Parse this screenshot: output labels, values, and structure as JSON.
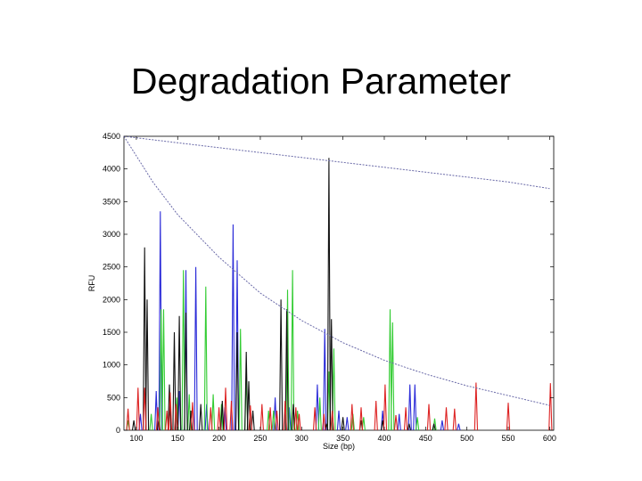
{
  "slide": {
    "title": "Degradation Parameter"
  },
  "chart_data": {
    "type": "line",
    "title": "",
    "xlabel": "Size (bp)",
    "ylabel": "RFU",
    "xlim": [
      85,
      605
    ],
    "ylim": [
      0,
      4500
    ],
    "grid": false,
    "x_ticks": [
      100,
      150,
      200,
      250,
      300,
      350,
      400,
      450,
      500,
      550,
      600
    ],
    "y_ticks": [
      0,
      500,
      1000,
      1500,
      2000,
      2500,
      3000,
      3500,
      4000,
      4500
    ],
    "colors": {
      "blue": "#2b2bd8",
      "green": "#33cc33",
      "black": "#111111",
      "red": "#dd2222",
      "curve": "#6a6aa8"
    },
    "curves": [
      {
        "x": [
          85,
          150,
          200,
          250,
          300,
          350,
          400,
          450,
          500,
          550,
          600
        ],
        "y": [
          4500,
          4400,
          4325,
          4250,
          4175,
          4100,
          4025,
          3950,
          3875,
          3800,
          3700
        ]
      },
      {
        "x": [
          85,
          120,
          150,
          200,
          250,
          300,
          350,
          400,
          450,
          500,
          550,
          600
        ],
        "y": [
          4500,
          3800,
          3300,
          2650,
          2100,
          1680,
          1340,
          1070,
          860,
          680,
          530,
          380
        ]
      }
    ],
    "series": [
      {
        "color": "blue",
        "peaks": [
          [
            105,
            250
          ],
          [
            124,
            600
          ],
          [
            129,
            3350
          ],
          [
            152,
            600
          ],
          [
            160,
            2450
          ],
          [
            172,
            2500
          ],
          [
            185,
            400
          ],
          [
            207,
            350
          ],
          [
            217,
            3150
          ],
          [
            222,
            2600
          ],
          [
            268,
            500
          ],
          [
            285,
            350
          ],
          [
            319,
            700
          ],
          [
            328,
            1550
          ],
          [
            345,
            300
          ],
          [
            355,
            200
          ],
          [
            398,
            300
          ],
          [
            418,
            250
          ],
          [
            431,
            700
          ],
          [
            437,
            700
          ],
          [
            470,
            150
          ],
          [
            490,
            100
          ]
        ]
      },
      {
        "color": "green",
        "peaks": [
          [
            90,
            150
          ],
          [
            118,
            250
          ],
          [
            130,
            1850
          ],
          [
            133,
            1850
          ],
          [
            149,
            500
          ],
          [
            157,
            2450
          ],
          [
            164,
            550
          ],
          [
            184,
            2200
          ],
          [
            193,
            550
          ],
          [
            203,
            400
          ],
          [
            226,
            1550
          ],
          [
            233,
            850
          ],
          [
            260,
            300
          ],
          [
            266,
            300
          ],
          [
            283,
            2150
          ],
          [
            289,
            2450
          ],
          [
            295,
            300
          ],
          [
            322,
            500
          ],
          [
            333,
            900
          ],
          [
            339,
            1250
          ],
          [
            362,
            250
          ],
          [
            375,
            200
          ],
          [
            407,
            1850
          ],
          [
            410,
            1650
          ],
          [
            440,
            200
          ],
          [
            461,
            180
          ]
        ]
      },
      {
        "color": "black",
        "peaks": [
          [
            97,
            150
          ],
          [
            110,
            2800
          ],
          [
            113,
            2000
          ],
          [
            127,
            150
          ],
          [
            140,
            700
          ],
          [
            146,
            1500
          ],
          [
            152,
            1750
          ],
          [
            160,
            1800
          ],
          [
            166,
            300
          ],
          [
            178,
            400
          ],
          [
            204,
            450
          ],
          [
            222,
            1500
          ],
          [
            233,
            1200
          ],
          [
            236,
            750
          ],
          [
            241,
            300
          ],
          [
            275,
            2000
          ],
          [
            282,
            1850
          ],
          [
            290,
            400
          ],
          [
            330,
            100
          ],
          [
            333,
            4170
          ],
          [
            336,
            1700
          ],
          [
            350,
            200
          ],
          [
            372,
            150
          ],
          [
            398,
            150
          ],
          [
            430,
            100
          ],
          [
            460,
            100
          ]
        ]
      },
      {
        "color": "red",
        "peaks": [
          [
            90,
            330
          ],
          [
            102,
            650
          ],
          [
            110,
            650
          ],
          [
            126,
            350
          ],
          [
            137,
            300
          ],
          [
            141,
            580
          ],
          [
            148,
            400
          ],
          [
            168,
            430
          ],
          [
            190,
            350
          ],
          [
            200,
            350
          ],
          [
            208,
            650
          ],
          [
            215,
            450
          ],
          [
            238,
            380
          ],
          [
            252,
            400
          ],
          [
            262,
            350
          ],
          [
            270,
            300
          ],
          [
            280,
            450
          ],
          [
            293,
            350
          ],
          [
            297,
            250
          ],
          [
            316,
            350
          ],
          [
            327,
            250
          ],
          [
            337,
            300
          ],
          [
            361,
            400
          ],
          [
            372,
            350
          ],
          [
            390,
            450
          ],
          [
            401,
            700
          ],
          [
            414,
            230
          ],
          [
            426,
            350
          ],
          [
            454,
            400
          ],
          [
            475,
            350
          ],
          [
            485,
            330
          ],
          [
            511,
            730
          ],
          [
            550,
            420
          ],
          [
            601,
            720
          ]
        ]
      }
    ]
  }
}
